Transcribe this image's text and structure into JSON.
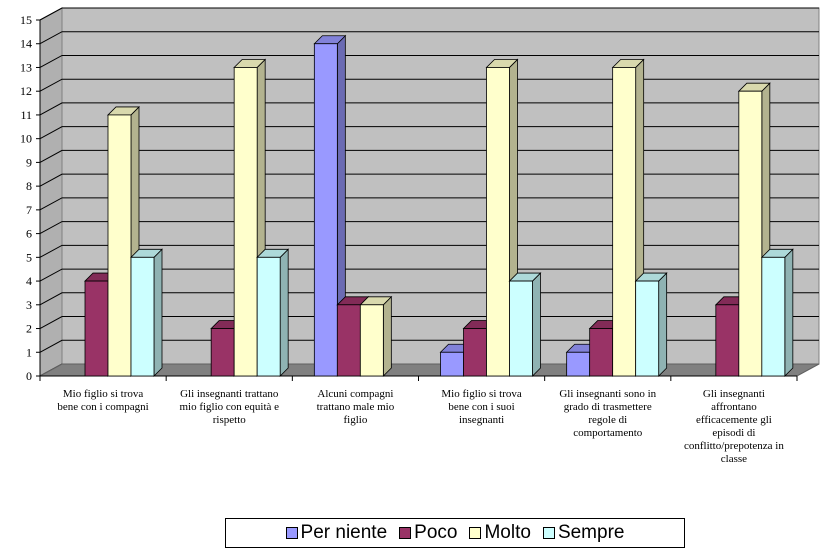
{
  "chart_data": {
    "type": "bar",
    "categories": [
      [
        "Mio figlio si trova",
        "bene  con i compagni"
      ],
      [
        "Gli insegnanti trattano",
        "mio figlio con equità e",
        "rispetto"
      ],
      [
        "Alcuni compagni",
        "trattano male mio",
        "figlio"
      ],
      [
        "Mio figlio si trova",
        "bene con i suoi",
        "insegnanti"
      ],
      [
        "Gli insegnanti sono in",
        "grado di trasmettere",
        "regole di",
        "comportamento"
      ],
      [
        "Gli insegnanti",
        "affrontano",
        "efficacemente gli",
        "episodi di",
        "conflitto/prepotenza in",
        "classe"
      ]
    ],
    "series": [
      {
        "name": "Per niente",
        "color": "#9999ff",
        "values": [
          0,
          0,
          14,
          1,
          1,
          0
        ]
      },
      {
        "name": "Poco",
        "color": "#993366",
        "values": [
          4,
          2,
          3,
          2,
          2,
          3
        ]
      },
      {
        "name": "Molto",
        "color": "#ffffcc",
        "values": [
          11,
          13,
          3,
          13,
          13,
          12
        ]
      },
      {
        "name": "Sempre",
        "color": "#ccffff",
        "values": [
          5,
          5,
          0,
          4,
          4,
          5
        ]
      }
    ],
    "ylim": [
      0,
      15
    ],
    "yticks": [
      0,
      1,
      2,
      3,
      4,
      5,
      6,
      7,
      8,
      9,
      10,
      11,
      12,
      13,
      14,
      15
    ],
    "grid": true,
    "legend_position": "bottom",
    "plot_background": "#c0c0c0",
    "floor_color": "#808080"
  }
}
